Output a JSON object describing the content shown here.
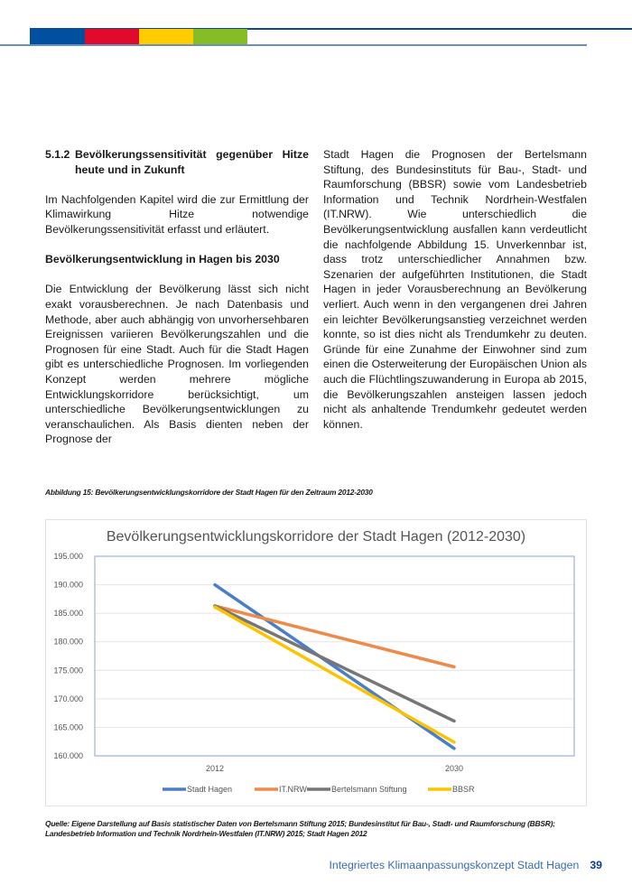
{
  "header": {
    "colors": [
      "#0050a0",
      "#e10a2d",
      "#ffcc00",
      "#86bc25"
    ]
  },
  "left_column": {
    "section_number": "5.1.2",
    "section_title": "Bevölkerungssensitivität gegenüber Hitze heute und in Zukunft",
    "intro": "Im Nachfolgenden Kapitel wird die zur Ermittlung der Klimawirkung Hitze notwendige Bevölkerungssensitivität erfasst und erläutert.",
    "subheading": "Bevölkerungsentwicklung in Hagen bis 2030",
    "paragraph": "Die Entwicklung der Bevölkerung lässt sich nicht exakt vorausberechnen. Je nach Datenbasis und Methode, aber auch abhängig von unvorhersehbaren Ereignissen variieren Bevölkerungszahlen und die Prognosen für eine Stadt. Auch für die Stadt Hagen gibt es unterschiedliche Prognosen. Im vorliegenden Konzept werden mehrere mögliche Entwicklungskorridore berücksichtigt, um unterschiedliche Bevölkerungsentwicklungen zu veranschaulichen. Als Basis dienten neben der Prognose der"
  },
  "right_column": {
    "paragraph": "Stadt Hagen die Prognosen der Bertelsmann Stiftung, des Bundesinstituts für Bau-, Stadt- und Raumforschung (BBSR) sowie vom Landesbetrieb Information und Technik Nordrhein-Westfalen (IT.NRW). Wie unterschiedlich die Bevölkerungsentwicklung ausfallen kann verdeutlicht die nachfolgende Abbildung 15. Unverkennbar ist, dass trotz unterschiedlicher Annahmen bzw. Szenarien der aufgeführten Institutionen, die Stadt Hagen in jeder Vorausberechnung an Bevölkerung verliert. Auch wenn in den vergangenen drei Jahren ein leichter Bevölkerungsanstieg verzeichnet werden konnte, so ist dies nicht als Trendumkehr zu deuten. Gründe für eine Zunahme der Einwohner sind zum einen die Osterweiterung der Europäischen Union als auch die Flüchtlingszuwanderung in Europa ab 2015, die Bevölkerungszahlen ansteigen lassen jedoch nicht als anhaltende Trendumkehr gedeutet werden können."
  },
  "figure": {
    "caption": "Abbildung 15: Bevölkerungsentwicklungskorridore der Stadt Hagen für den Zeitraum 2012-2030",
    "source": "Quelle: Eigene Darstellung auf Basis statistischer Daten von Bertelsmann Stiftung 2015; Bundesinstitut für Bau-, Stadt- und Raumforschung (BBSR); Landesbetrieb Information und Technik Nordrhein-Westfalen (IT.NRW) 2015; Stadt Hagen 2012"
  },
  "chart_data": {
    "type": "line",
    "title": "Bevölkerungsentwicklungskorridore der Stadt Hagen (2012-2030)",
    "categories": [
      "2012",
      "2030"
    ],
    "ylim": [
      160000,
      195000
    ],
    "yticks": [
      "160.000",
      "165.000",
      "170.000",
      "175.000",
      "180.000",
      "185.000",
      "190.000",
      "195.000"
    ],
    "ytick_values": [
      160000,
      165000,
      170000,
      175000,
      180000,
      185000,
      190000,
      195000
    ],
    "grid": true,
    "legend": "bottom",
    "series": [
      {
        "name": "Stadt Hagen",
        "values": [
          190000,
          161300
        ],
        "color": "#4a7ec8"
      },
      {
        "name": "IT.NRW",
        "values": [
          186300,
          175600
        ],
        "color": "#ee8a4a"
      },
      {
        "name": "Bertelsmann Stiftung",
        "values": [
          186300,
          166100
        ],
        "color": "#767676"
      },
      {
        "name": "BBSR",
        "values": [
          186100,
          162400
        ],
        "color": "#fcc400"
      }
    ]
  },
  "footer": {
    "title": "Integriertes Klimaanpassungskonzept Stadt Hagen",
    "page": "39"
  }
}
